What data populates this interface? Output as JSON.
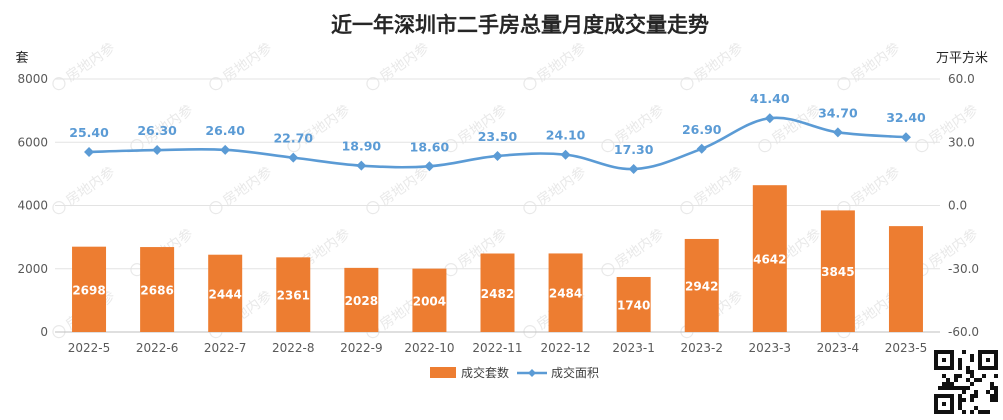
{
  "watermark": "房地内参",
  "chart_data": {
    "type": "bar",
    "title": "近一年深圳市二手房总量月度成交量走势",
    "categories": [
      "2022-5",
      "2022-6",
      "2022-7",
      "2022-8",
      "2022-9",
      "2022-10",
      "2022-11",
      "2022-12",
      "2023-1",
      "2023-2",
      "2023-3",
      "2023-4",
      "2023-5"
    ],
    "series": [
      {
        "name": "成交套数",
        "type": "bar",
        "axis": "left",
        "color": "#ed7d31",
        "values": [
          2698,
          2686,
          2444,
          2361,
          2028,
          2004,
          2482,
          2484,
          1740,
          2942,
          4642,
          3845,
          3348
        ]
      },
      {
        "name": "成交面积",
        "type": "line",
        "axis": "right",
        "color": "#5b9bd5",
        "values": [
          25.4,
          26.3,
          26.4,
          22.7,
          18.9,
          18.6,
          23.5,
          24.1,
          17.3,
          26.9,
          41.4,
          34.7,
          32.4
        ]
      }
    ],
    "y_left": {
      "unit": "套",
      "ylim": [
        0,
        8000
      ],
      "ticks": [
        "0",
        "2000",
        "4000",
        "6000",
        "8000"
      ]
    },
    "y_right": {
      "unit": "万平方米",
      "ylim": [
        -60,
        60
      ],
      "ticks": [
        "-60.0",
        "-30.0",
        "0.0",
        "30.0",
        "60.0"
      ]
    },
    "highlight_color": "#e00000",
    "highlight_index": 12,
    "grid": true,
    "legend_position": "bottom"
  }
}
